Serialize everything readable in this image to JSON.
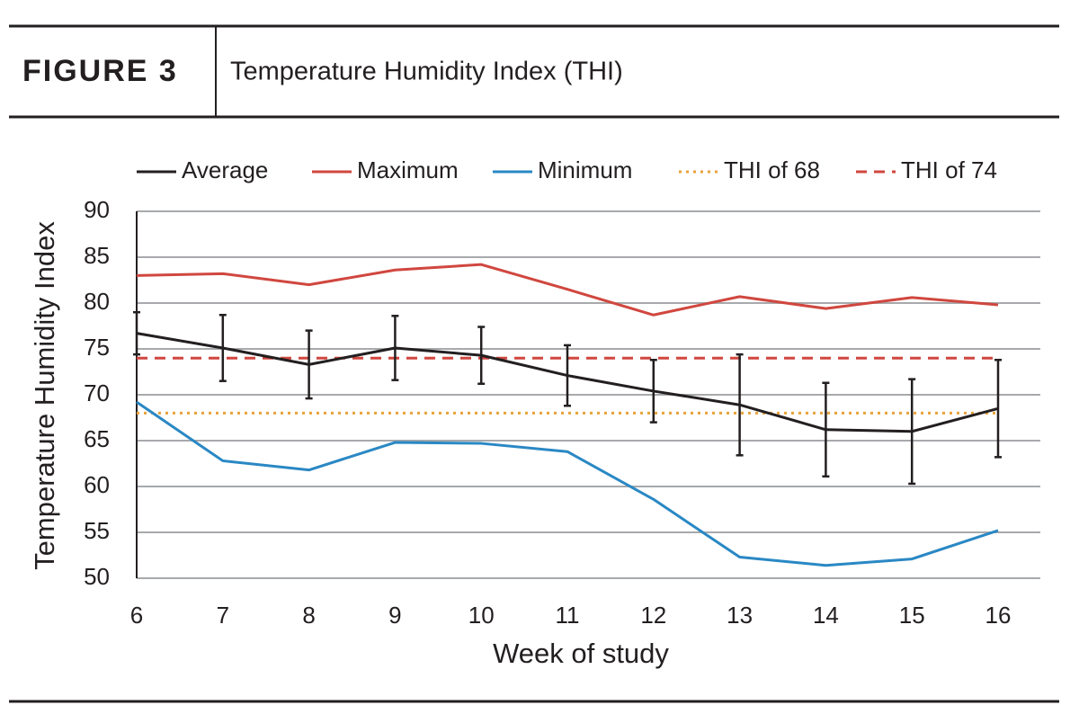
{
  "header": {
    "label": "FIGURE 3",
    "title": "Temperature Humidity Index (THI)"
  },
  "chart_data": {
    "type": "line",
    "x_label": "Week of study",
    "y_label": "Temperature Humidity Index",
    "x": [
      6,
      7,
      8,
      9,
      10,
      11,
      12,
      13,
      14,
      15,
      16
    ],
    "xlim": [
      6,
      16
    ],
    "xticks": [
      6,
      7,
      8,
      9,
      10,
      11,
      12,
      13,
      14,
      15,
      16
    ],
    "ylim": [
      50,
      90
    ],
    "yticks": [
      50,
      55,
      60,
      65,
      70,
      75,
      80,
      85,
      90
    ],
    "grid": true,
    "legend": "top",
    "series": [
      {
        "name": "Average",
        "color": "#231f20",
        "values": [
          76.7,
          75.1,
          73.3,
          75.1,
          74.3,
          72.1,
          70.4,
          68.9,
          66.2,
          66.0,
          68.5
        ],
        "errors": [
          2.3,
          3.6,
          3.7,
          3.5,
          3.1,
          3.3,
          3.4,
          5.5,
          5.1,
          5.7,
          5.3
        ]
      },
      {
        "name": "Maximum",
        "color": "#d0473f",
        "values": [
          83.0,
          83.2,
          82.0,
          83.6,
          84.2,
          81.5,
          78.7,
          80.7,
          79.4,
          80.6,
          79.8
        ]
      },
      {
        "name": "Minimum",
        "color": "#2a88c4",
        "values": [
          69.2,
          62.8,
          61.8,
          64.8,
          64.7,
          63.8,
          58.6,
          52.3,
          51.4,
          52.1,
          55.2
        ]
      }
    ],
    "reference_lines": [
      {
        "name": "THI of 68",
        "value": 68,
        "color": "#e8a33b",
        "style": "dotted"
      },
      {
        "name": "THI of 74",
        "value": 74,
        "color": "#d0473f",
        "style": "dashed"
      }
    ]
  }
}
